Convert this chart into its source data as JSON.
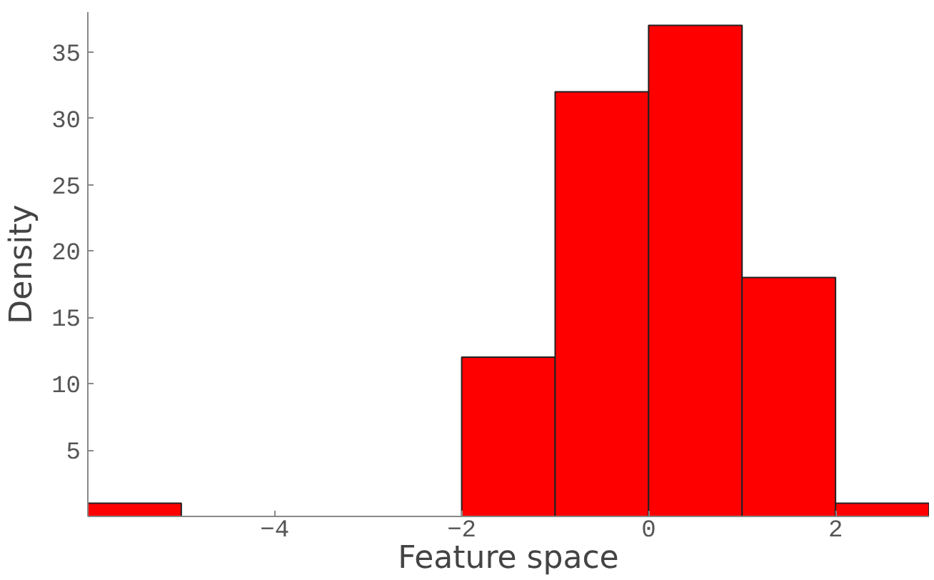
{
  "chart_data": {
    "type": "histogram",
    "xlabel": "Feature space",
    "ylabel": "Density",
    "bins": [
      -6,
      -5,
      -4,
      -3,
      -2,
      -1,
      0,
      1,
      2,
      3
    ],
    "values": [
      1,
      0,
      0,
      0,
      12,
      32,
      37,
      18,
      1
    ],
    "color": "#ff0000",
    "xlim": [
      -6,
      3
    ],
    "ylim": [
      0,
      38
    ],
    "xticks": [
      -4,
      -2,
      0,
      2
    ],
    "yticks": [
      5,
      10,
      15,
      20,
      25,
      30,
      35
    ],
    "grid": false
  }
}
